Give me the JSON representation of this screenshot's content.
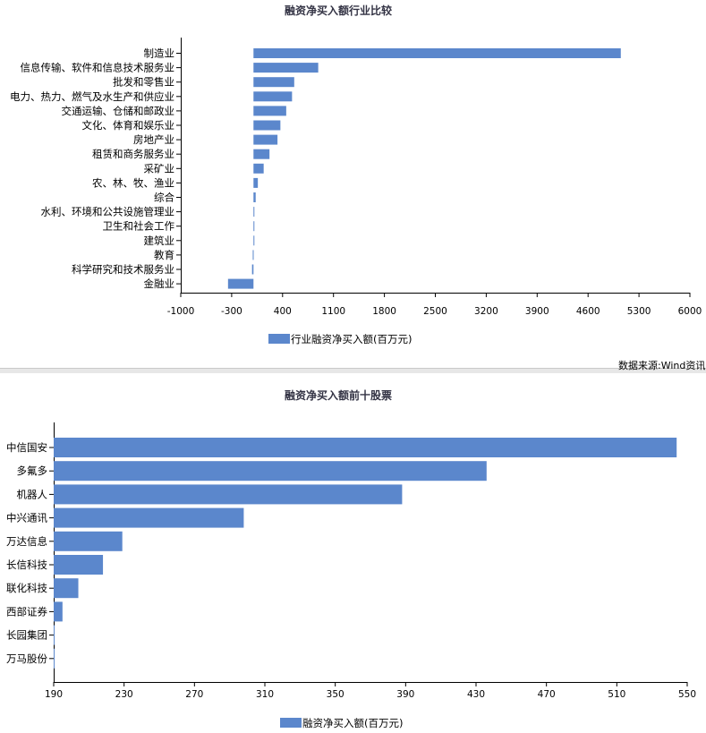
{
  "chart_data": [
    {
      "type": "bar",
      "orientation": "horizontal",
      "title": "融资净买入额行业比较",
      "categories": [
        "制造业",
        "信息传输、软件和信息技术服务业",
        "批发和零售业",
        "电力、热力、燃气及水生产和供应业",
        "交通运输、仓储和邮政业",
        "文化、体育和娱乐业",
        "房地产业",
        "租赁和商务服务业",
        "采矿业",
        "农、林、牧、渔业",
        "综合",
        "水利、环境和公共设施管理业",
        "卫生和社会工作",
        "建筑业",
        "教育",
        "科学研究和技术服务业",
        "金融业"
      ],
      "series": [
        {
          "name": "行业融资净买入额(百万元)",
          "values": [
            5050,
            890,
            560,
            530,
            450,
            370,
            330,
            220,
            140,
            60,
            30,
            10,
            5,
            5,
            -10,
            -20,
            -350
          ]
        }
      ],
      "xlim": [
        -1000,
        6000
      ],
      "xticks": [
        "-1000",
        "-300",
        "400",
        "1100",
        "1800",
        "2500",
        "3200",
        "3900",
        "4600",
        "5300",
        "6000"
      ],
      "color": "#5b87cc",
      "legend_position": "bottom"
    },
    {
      "type": "bar",
      "orientation": "horizontal",
      "title": "融资净买入额前十股票",
      "categories": [
        "中信国安",
        "多氟多",
        "机器人",
        "中兴通讯",
        "万达信息",
        "长信科技",
        "联化科技",
        "西部证券",
        "长园集团",
        "万马股份"
      ],
      "series": [
        {
          "name": "融资净买入额(百万元)",
          "values": [
            544,
            436,
            388,
            298,
            229,
            218,
            204,
            195,
            190.3,
            190.1
          ]
        }
      ],
      "xlim": [
        190,
        550
      ],
      "xticks": [
        "190",
        "230",
        "270",
        "310",
        "350",
        "390",
        "430",
        "470",
        "510",
        "550"
      ],
      "color": "#5b87cc",
      "legend_position": "bottom"
    }
  ],
  "source_note": "数据来源:Wind资讯"
}
